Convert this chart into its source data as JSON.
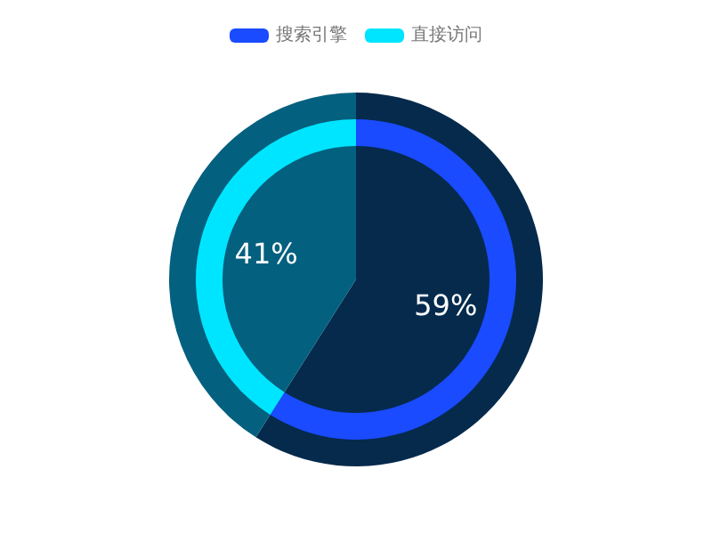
{
  "chart_data": {
    "type": "pie",
    "categories": [
      "搜索引擎",
      "直接访问"
    ],
    "legend": "top",
    "series": [
      {
        "values": [
          59,
          41
        ],
        "colors": [
          "#052a4c",
          "#04607f"
        ],
        "value_labels": [
          "59%",
          "41%"
        ]
      },
      {
        "type": "donut",
        "values": [
          59,
          41
        ],
        "colors": [
          "#1a4bff",
          "#00e5ff"
        ]
      }
    ]
  }
}
